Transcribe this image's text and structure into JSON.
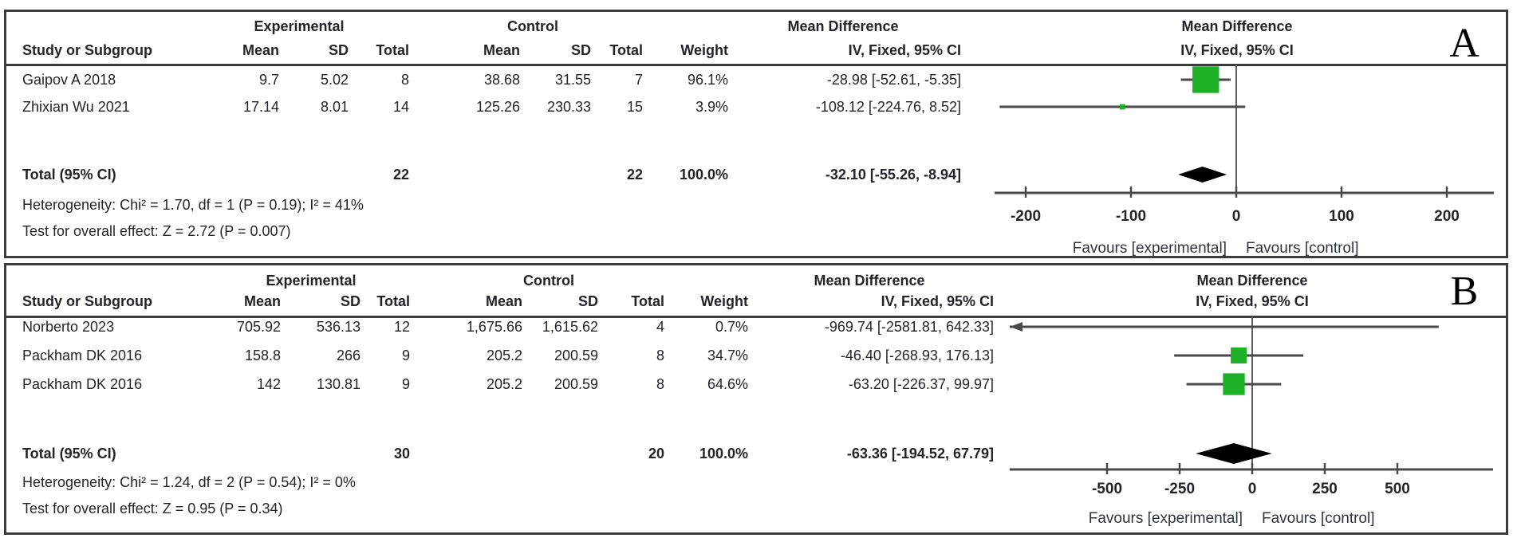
{
  "colors": {
    "marker_green": "#1eb027",
    "diamond_black": "#000000",
    "line_gray": "#4a4a4a",
    "border_gray": "#3c3c3c",
    "text_dark": "#22242c",
    "favours_text": "#2e3442"
  },
  "chart_data": [
    {
      "type": "forest",
      "panel_label": "A",
      "effect_measure_header": "Mean Difference",
      "method_header": "IV, Fixed, 95% CI",
      "group_headers": {
        "experimental": "Experimental",
        "control": "Control"
      },
      "column_headers": {
        "study": "Study or Subgroup",
        "mean": "Mean",
        "sd": "SD",
        "total": "Total",
        "weight": "Weight"
      },
      "studies": [
        {
          "name": "Gaipov A 2018",
          "exp_mean": "9.7",
          "exp_sd": "5.02",
          "exp_total": "8",
          "ctrl_mean": "38.68",
          "ctrl_sd": "31.55",
          "ctrl_total": "7",
          "weight": "96.1%",
          "ci_text": "-28.98 [-52.61, -5.35]",
          "md": -28.98,
          "ci_low": -52.61,
          "ci_high": -5.35,
          "weight_pct": 96.1
        },
        {
          "name": "Zhixian Wu 2021",
          "exp_mean": "17.14",
          "exp_sd": "8.01",
          "exp_total": "14",
          "ctrl_mean": "125.26",
          "ctrl_sd": "230.33",
          "ctrl_total": "15",
          "weight": "3.9%",
          "ci_text": "-108.12 [-224.76, 8.52]",
          "md": -108.12,
          "ci_low": -224.76,
          "ci_high": 8.52,
          "weight_pct": 3.9
        }
      ],
      "total": {
        "label": "Total (95% CI)",
        "exp_total": "22",
        "ctrl_total": "22",
        "weight": "100.0%",
        "ci_text": "-32.10 [-55.26, -8.94]",
        "md": -32.1,
        "ci_low": -55.26,
        "ci_high": -8.94
      },
      "heterogeneity": "Heterogeneity: Chi² = 1.70, df = 1 (P = 0.19); I² = 41%",
      "overall_effect": "Test for overall effect: Z = 2.72 (P = 0.007)",
      "axis": {
        "ticks": [
          -200,
          -100,
          0,
          100,
          200
        ],
        "favours_left": "Favours [experimental]",
        "favours_right": "Favours [control]"
      }
    },
    {
      "type": "forest",
      "panel_label": "B",
      "effect_measure_header": "Mean Difference",
      "method_header": "IV, Fixed, 95% CI",
      "group_headers": {
        "experimental": "Experimental",
        "control": "Control"
      },
      "column_headers": {
        "study": "Study or Subgroup",
        "mean": "Mean",
        "sd": "SD",
        "total": "Total",
        "weight": "Weight"
      },
      "studies": [
        {
          "name": "Norberto 2023",
          "exp_mean": "705.92",
          "exp_sd": "536.13",
          "exp_total": "12",
          "ctrl_mean": "1,675.66",
          "ctrl_sd": "1,615.62",
          "ctrl_total": "4",
          "weight": "0.7%",
          "ci_text": "-969.74 [-2581.81, 642.33]",
          "md": -969.74,
          "ci_low": -2581.81,
          "ci_high": 642.33,
          "weight_pct": 0.7
        },
        {
          "name": "Packham DK 2016",
          "exp_mean": "158.8",
          "exp_sd": "266",
          "exp_total": "9",
          "ctrl_mean": "205.2",
          "ctrl_sd": "200.59",
          "ctrl_total": "8",
          "weight": "34.7%",
          "ci_text": "-46.40 [-268.93, 176.13]",
          "md": -46.4,
          "ci_low": -268.93,
          "ci_high": 176.13,
          "weight_pct": 34.7
        },
        {
          "name": "Packham DK 2016",
          "exp_mean": "142",
          "exp_sd": "130.81",
          "exp_total": "9",
          "ctrl_mean": "205.2",
          "ctrl_sd": "200.59",
          "ctrl_total": "8",
          "weight": "64.6%",
          "ci_text": "-63.20 [-226.37, 99.97]",
          "md": -63.2,
          "ci_low": -226.37,
          "ci_high": 99.97,
          "weight_pct": 64.6
        }
      ],
      "total": {
        "label": "Total (95% CI)",
        "exp_total": "30",
        "ctrl_total": "20",
        "weight": "100.0%",
        "ci_text": "-63.36 [-194.52, 67.79]",
        "md": -63.36,
        "ci_low": -194.52,
        "ci_high": 67.79
      },
      "heterogeneity": "Heterogeneity: Chi² = 1.24, df = 2 (P = 0.54); I² = 0%",
      "overall_effect": "Test for overall effect: Z = 0.95 (P = 0.34)",
      "axis": {
        "ticks": [
          -500,
          -250,
          0,
          250,
          500
        ],
        "favours_left": "Favours [experimental]",
        "favours_right": "Favours [control]"
      }
    }
  ]
}
